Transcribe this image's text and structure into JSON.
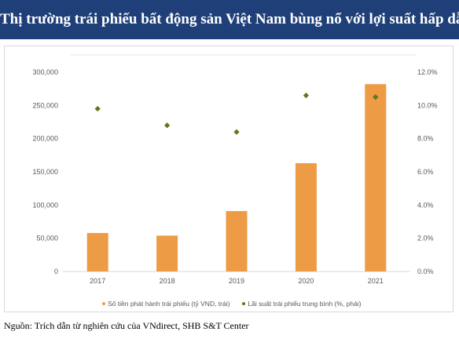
{
  "header": {
    "title": "Thị trường trái phiếu bất động sản Việt Nam bùng nổ với lợi suất hấp dẫn"
  },
  "chart_data": {
    "type": "bar",
    "categories": [
      "2017",
      "2018",
      "2019",
      "2020",
      "2021"
    ],
    "series": [
      {
        "name": "Số tiền phát hành trái phiếu (tỷ VND, trái)",
        "type": "bar",
        "axis": "left",
        "color": "#ed9b45",
        "values": [
          58000,
          54000,
          91000,
          163000,
          282000
        ]
      },
      {
        "name": "Lãi suất trái phiếu trung bình (%, phải)",
        "type": "scatter",
        "axis": "right",
        "color": "#5b7a1a",
        "values": [
          9.8,
          8.8,
          8.4,
          10.6,
          10.5
        ]
      }
    ],
    "y_left": {
      "ylim": [
        0,
        300000
      ],
      "ticks": [
        0,
        50000,
        100000,
        150000,
        200000,
        250000,
        300000
      ],
      "tick_labels": [
        "0",
        "50,000",
        "100,000",
        "150,000",
        "200,000",
        "250,000",
        "300,000"
      ]
    },
    "y_right": {
      "ylim": [
        0,
        12
      ],
      "ticks": [
        0,
        2,
        4,
        6,
        8,
        10,
        12
      ],
      "tick_labels": [
        "0.0%",
        "2.0%",
        "4.0%",
        "6.0%",
        "8.0%",
        "10.0%",
        "12.0%"
      ]
    },
    "grid": false,
    "legend_position": "bottom"
  },
  "footer": {
    "source": "Nguồn: Trích dẫn từ nghiên cứu của VNdirect, SHB S&T Center"
  }
}
